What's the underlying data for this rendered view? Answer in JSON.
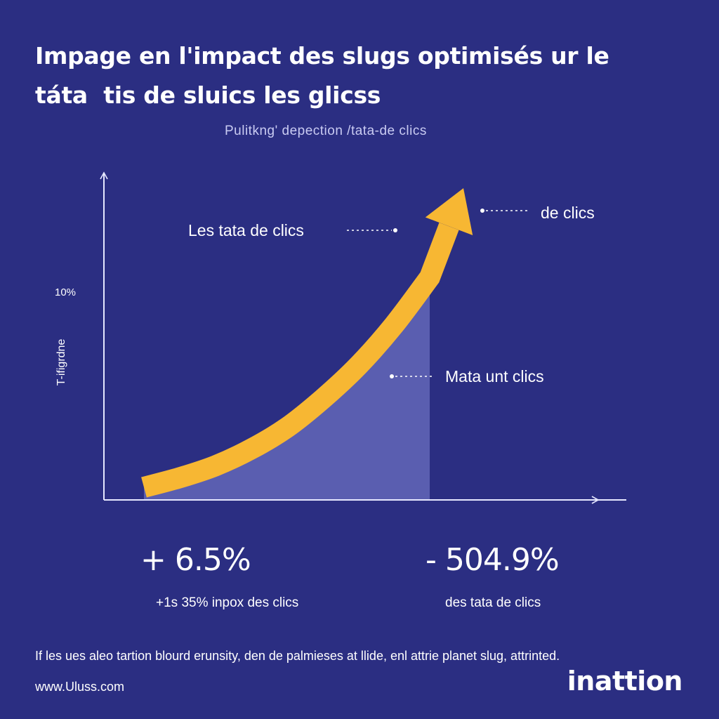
{
  "colors": {
    "background": "#2b2e82",
    "arrow": "#f7b733",
    "area": "#5a5eb0",
    "axis": "#e6e8ff",
    "subtitle": "#c9cbf2"
  },
  "title_lines": [
    "Impage en l'impact des slugs optimisés ur le",
    "táta  tis de sluics les glicss"
  ],
  "chart_data": {
    "type": "area",
    "title": "Impage en l'impact des slugs optimisés ur le táta  tis de sluics les glicss",
    "subtitle": "Pulitkng' depection /tata-de clics",
    "ylabel": "T-ifigrdne",
    "xlabel": "",
    "y_tick_labels": [
      "10%"
    ],
    "grid": false,
    "series": [
      {
        "values": [
          0,
          4,
          9,
          16,
          25,
          37,
          51,
          68,
          88
        ]
      }
    ],
    "annotations": [
      {
        "text": "Les tata de clics"
      },
      {
        "text": "de clics"
      },
      {
        "text": "Mata unt clics"
      }
    ],
    "stats": [
      {
        "value": "+ 6.5%",
        "caption": "+1s 35% inpox des clics"
      },
      {
        "value": "- 504.9%",
        "caption": "des tata de clics"
      }
    ]
  },
  "footnote": "If les ues aleo tartion blourd erunsity, den de palmieses at llide, enl attrie planet slug, attrinted.",
  "website": "www.Uluss.com",
  "brand": "inattion"
}
